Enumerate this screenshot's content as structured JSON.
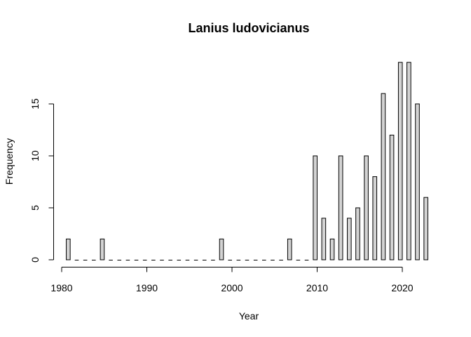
{
  "chart_data": {
    "type": "bar",
    "title": "Lanius ludovicianus",
    "xlabel": "Year",
    "ylabel": "Frequency",
    "xlim": [
      1980,
      2023
    ],
    "ylim": [
      0,
      19
    ],
    "x_ticks": [
      1980,
      1990,
      2000,
      2010,
      2020
    ],
    "y_ticks": [
      0,
      5,
      10,
      15
    ],
    "categories": [
      1981,
      1982,
      1983,
      1984,
      1985,
      1986,
      1987,
      1988,
      1989,
      1990,
      1991,
      1992,
      1993,
      1994,
      1995,
      1996,
      1997,
      1998,
      1999,
      2000,
      2001,
      2002,
      2003,
      2004,
      2005,
      2006,
      2007,
      2008,
      2009,
      2010,
      2011,
      2012,
      2013,
      2014,
      2015,
      2016,
      2017,
      2018,
      2019,
      2020,
      2021,
      2022,
      2023
    ],
    "values": [
      2,
      0,
      0,
      0,
      2,
      0,
      0,
      0,
      0,
      0,
      0,
      0,
      0,
      0,
      0,
      0,
      0,
      0,
      2,
      0,
      0,
      0,
      0,
      0,
      0,
      0,
      2,
      0,
      0,
      10,
      4,
      2,
      10,
      4,
      5,
      10,
      8,
      16,
      12,
      19,
      19,
      15,
      6
    ]
  }
}
